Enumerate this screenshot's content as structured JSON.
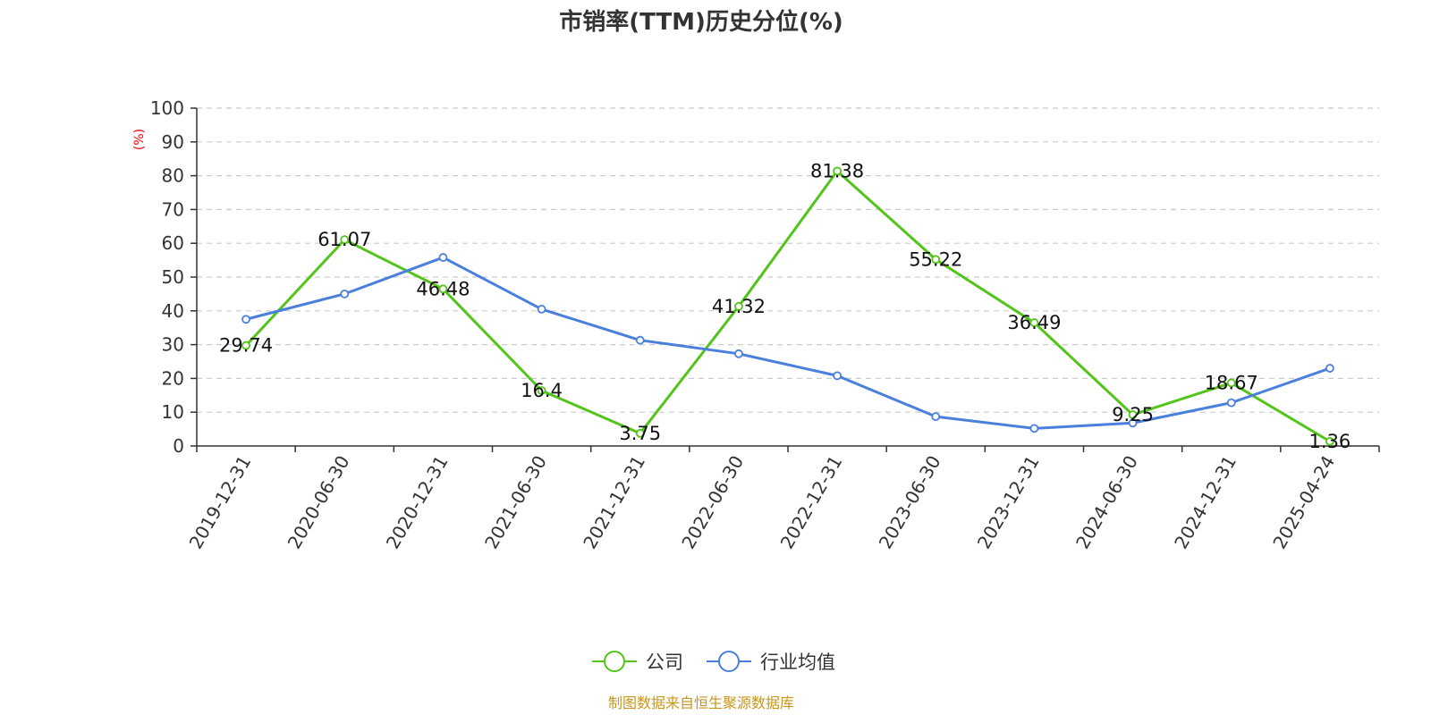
{
  "chart_data": {
    "type": "line",
    "title": "市销率(TTM)历史分位(%)",
    "ylabel": "(%)",
    "xlabel": "",
    "ylim": [
      0,
      100
    ],
    "yticks": [
      0,
      10,
      20,
      30,
      40,
      50,
      60,
      70,
      80,
      90,
      100
    ],
    "grid": true,
    "legend_position": "bottom-center",
    "categories": [
      "2019-12-31",
      "2020-06-30",
      "2020-12-31",
      "2021-06-30",
      "2021-12-31",
      "2022-06-30",
      "2022-12-31",
      "2023-06-30",
      "2023-12-31",
      "2024-06-30",
      "2024-12-31",
      "2025-04-24"
    ],
    "series": [
      {
        "name": "公司",
        "color": "#52c41a",
        "values": [
          29.74,
          61.07,
          46.48,
          16.4,
          3.75,
          41.32,
          81.38,
          55.22,
          36.49,
          9.25,
          18.67,
          1.36
        ],
        "labels": [
          "29.74",
          "61.07",
          "46.48",
          "16.4",
          "3.75",
          "41.32",
          "81.38",
          "55.22",
          "36.49",
          "9.25",
          "18.67",
          "1.36"
        ]
      },
      {
        "name": "行业均值",
        "color": "#4a7fdc",
        "values": [
          37.5,
          45.0,
          55.8,
          40.5,
          31.3,
          27.3,
          20.8,
          8.7,
          5.2,
          6.8,
          12.8,
          23.0
        ]
      }
    ],
    "source": "制图数据来自恒生聚源数据库"
  }
}
